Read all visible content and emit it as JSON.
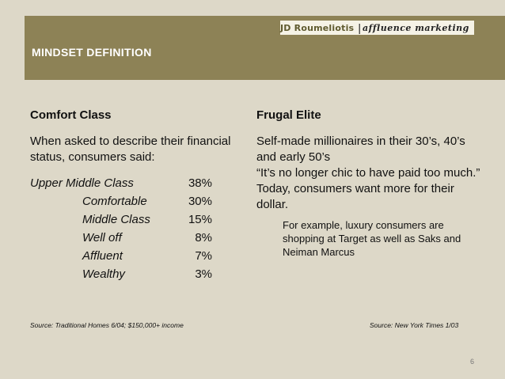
{
  "brand": {
    "name": "JD Roumeliotis",
    "separator": "|",
    "tagline": "affluence marketing"
  },
  "slide": {
    "title": "MINDSET DEFINITION",
    "page_number": "6"
  },
  "left": {
    "heading": "Comfort Class",
    "intro": "When asked to describe their financial status, consumers said:",
    "stats": [
      {
        "label": "Upper Middle Class",
        "value": "38%"
      },
      {
        "label": "Comfortable",
        "value": "30%"
      },
      {
        "label": "Middle Class",
        "value": "15%"
      },
      {
        "label": "Well off",
        "value": "8%"
      },
      {
        "label": "Affluent",
        "value": "7%"
      },
      {
        "label": "Wealthy",
        "value": "3%"
      }
    ],
    "source": "Source:  Traditional Homes 6/04; $150,000+ income"
  },
  "right": {
    "heading": "Frugal Elite",
    "line1": "Self-made millionaires in their 30’s, 40’s and early 50’s",
    "line2": "“It’s no longer chic to have paid too much.” Today, consumers want more for their dollar.",
    "example": "For example, luxury consumers are shopping at Target as well as Saks and Neiman Marcus",
    "source": "Source:  New York Times 1/03"
  },
  "colors": {
    "background": "#ddd8c8",
    "header_band": "#8d8256",
    "brand_box": "#f5f2e6",
    "brand_text": "#5f5a2f"
  }
}
